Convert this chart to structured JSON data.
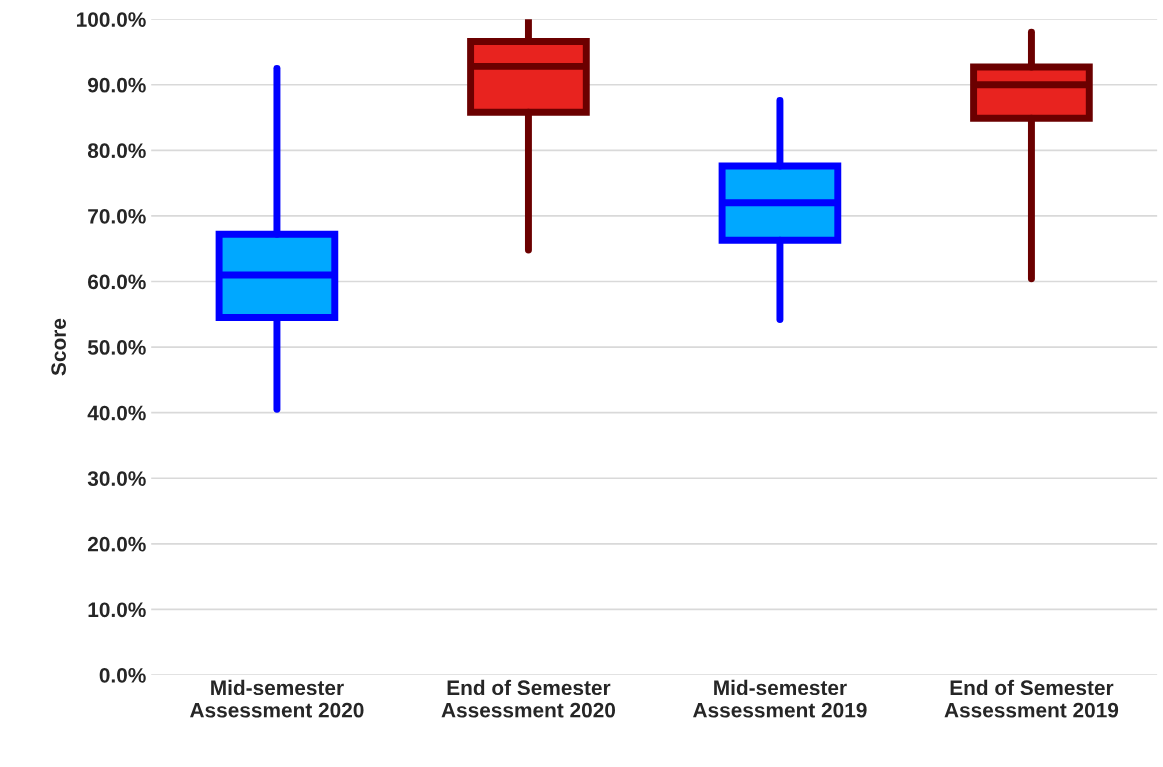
{
  "chart_data": {
    "type": "box",
    "ylabel": "Score",
    "categories": [
      "Mid-semester\nAssessment 2020",
      "End of Semester\nAssessment 2020",
      "Mid-semester\nAssessment 2019",
      "End of Semester\nAssessment 2019"
    ],
    "boxes": [
      {
        "low": 40.5,
        "q1": 54.5,
        "median": 61.0,
        "q3": 67.2,
        "high": 92.5
      },
      {
        "low": 64.8,
        "q1": 85.8,
        "median": 92.8,
        "q3": 96.6,
        "high": 100.0
      },
      {
        "low": 54.2,
        "q1": 66.3,
        "median": 72.0,
        "q3": 77.6,
        "high": 87.6
      },
      {
        "low": 60.4,
        "q1": 84.9,
        "median": 90.0,
        "q3": 92.7,
        "high": 98.0
      }
    ],
    "colors": [
      "#00a8ff",
      "#e8231f",
      "#00a8ff",
      "#e8231f"
    ],
    "ylim": [
      0,
      100
    ],
    "yticks": [
      {
        "value": 0,
        "label": "0.0%"
      },
      {
        "value": 10,
        "label": "10.0%"
      },
      {
        "value": 20,
        "label": "20.0%"
      },
      {
        "value": 30,
        "label": "30.0%"
      },
      {
        "value": 40,
        "label": "40.0%"
      },
      {
        "value": 50,
        "label": "50.0%"
      },
      {
        "value": 60,
        "label": "60.0%"
      },
      {
        "value": 70,
        "label": "70.0%"
      },
      {
        "value": 80,
        "label": "80.0%"
      },
      {
        "value": 90,
        "label": "90.0%"
      },
      {
        "value": 100,
        "label": "100.0%"
      }
    ],
    "grid": "y"
  }
}
